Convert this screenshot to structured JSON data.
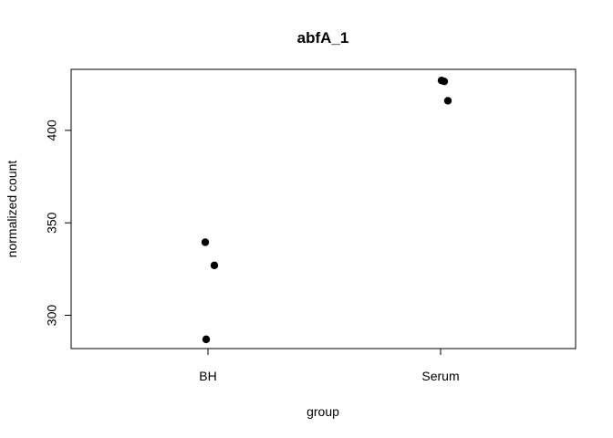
{
  "chart_data": {
    "type": "scatter",
    "title": "abfA_1",
    "xlabel": "group",
    "ylabel": "normalized count",
    "categories": [
      "BH",
      "Serum"
    ],
    "yticks": [
      300,
      350,
      400
    ],
    "ylim": [
      282,
      433
    ],
    "grid": false,
    "point_color": "#000000",
    "points": [
      {
        "group": "BH",
        "y": 339.5
      },
      {
        "group": "BH",
        "y": 327
      },
      {
        "group": "BH",
        "y": 287
      },
      {
        "group": "Serum",
        "y": 427
      },
      {
        "group": "Serum",
        "y": 426.5
      },
      {
        "group": "Serum",
        "y": 416
      }
    ]
  }
}
